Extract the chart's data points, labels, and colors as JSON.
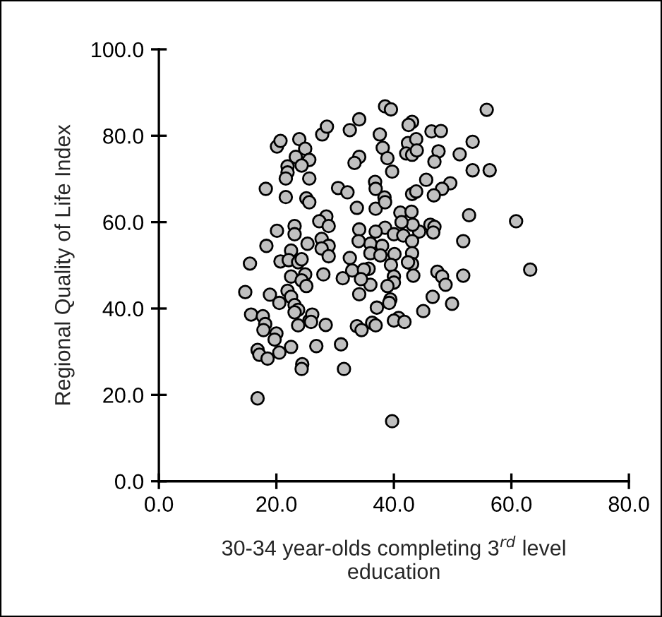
{
  "chart_data": {
    "type": "scatter",
    "xlabel": "30-34 year-olds completing 3$^{rd}$ level\neducation",
    "ylabel": "Regional Quality of Life Index",
    "xlim": [
      0,
      80
    ],
    "ylim": [
      0,
      100
    ],
    "xticks": [
      {
        "value": 0,
        "label": "0.0"
      },
      {
        "value": 20,
        "label": "20.0"
      },
      {
        "value": 40,
        "label": "40.0"
      },
      {
        "value": 60,
        "label": "60.0"
      },
      {
        "value": 80,
        "label": "80.0"
      }
    ],
    "yticks": [
      {
        "value": 0,
        "label": "0.0"
      },
      {
        "value": 20,
        "label": "20.0"
      },
      {
        "value": 40,
        "label": "40.0"
      },
      {
        "value": 60,
        "label": "60.0"
      },
      {
        "value": 80,
        "label": "80.0"
      },
      {
        "value": 100,
        "label": "100.0"
      }
    ],
    "grid": false,
    "legend": false,
    "marker": "circle",
    "series": [
      {
        "color": "#c0c0c0",
        "x": [
          20.1,
          20.7,
          23.9,
          24.9,
          23.3,
          25.6,
          21.9,
          24.3,
          21.9,
          21.6,
          25.6,
          18.2,
          21.6,
          25.1,
          25.6,
          27.8,
          28.6,
          32.5,
          34.1,
          30.5,
          32.1,
          34.1,
          33.3,
          33.7,
          38.5,
          39.5,
          55.8,
          43.1,
          42.5,
          46.4,
          48.0,
          37.6,
          42.4,
          43.8,
          38.1,
          42.1,
          43.1,
          43.9,
          47.6,
          46.9,
          53.4,
          51.2,
          38.9,
          39.7,
          53.4,
          56.3,
          45.5,
          49.6,
          48.2,
          46.8,
          43.1,
          43.8,
          36.8,
          36.9,
          38.4,
          36.9,
          38.5,
          41.1,
          43.0,
          52.8,
          60.8,
          46.2,
          46.9,
          46.7,
          44.3,
          43.2,
          41.3,
          38.5,
          36.9,
          40.0,
          41.6,
          43.1,
          51.8,
          36.0,
          38.0,
          36.0,
          37.7,
          40.1,
          43.1,
          43.1,
          42.4,
          39.5,
          35.7,
          47.4,
          48.2,
          48.8,
          51.8,
          63.2,
          43.3,
          40.0,
          40.0,
          38.9,
          36.0,
          46.6,
          49.9,
          39.4,
          39.2,
          37.1,
          45.0,
          40.8,
          40.0,
          41.8,
          36.3,
          36.9,
          39.7,
          23.1,
          28.5,
          27.3,
          28.9,
          20.1,
          23.1,
          34.1,
          34.0,
          27.7,
          25.3,
          28.9,
          18.3,
          15.5,
          20.7,
          22.5,
          22.1,
          23.7,
          24.3,
          27.7,
          28.9,
          32.5,
          32.9,
          34.9,
          31.3,
          34.4,
          28.0,
          24.9,
          22.5,
          24.3,
          25.1,
          14.7,
          18.9,
          21.9,
          22.5,
          20.5,
          23.1,
          23.7,
          23.1,
          34.1,
          15.7,
          17.7,
          18.1,
          17.8,
          20.0,
          19.7,
          22.5,
          25.6,
          26.1,
          23.7,
          25.9,
          28.4,
          33.7,
          34.5,
          16.8,
          17.1,
          18.5,
          20.5,
          26.8,
          31.0,
          24.4,
          24.3,
          31.5,
          16.8
        ],
        "values": [
          77.5,
          78.8,
          79.2,
          77.0,
          75.1,
          74.4,
          72.9,
          73.1,
          71.5,
          70.1,
          70.1,
          67.7,
          65.8,
          65.5,
          64.6,
          80.3,
          82.1,
          81.3,
          83.8,
          67.9,
          66.9,
          75.1,
          73.7,
          63.3,
          86.8,
          86.1,
          86.0,
          83.2,
          82.5,
          81.0,
          81.1,
          80.3,
          78.3,
          79.2,
          77.2,
          75.9,
          75.6,
          76.6,
          76.4,
          74.0,
          78.6,
          75.7,
          74.8,
          71.7,
          72.0,
          72.0,
          69.8,
          69.0,
          67.7,
          66.2,
          66.5,
          67.1,
          69.3,
          67.7,
          65.7,
          63.1,
          64.6,
          62.2,
          62.4,
          61.6,
          60.2,
          59.4,
          58.9,
          57.6,
          57.8,
          59.4,
          60.0,
          58.7,
          57.8,
          57.2,
          56.9,
          55.6,
          55.6,
          55.0,
          54.5,
          52.8,
          52.3,
          52.6,
          52.8,
          50.3,
          50.7,
          50.1,
          49.2,
          48.5,
          47.4,
          45.5,
          47.6,
          49.0,
          47.6,
          47.4,
          46.0,
          45.2,
          45.5,
          42.7,
          41.1,
          42.1,
          41.3,
          40.2,
          39.4,
          37.8,
          37.2,
          36.9,
          36.7,
          36.1,
          13.9,
          59.1,
          61.3,
          60.2,
          59.1,
          58.0,
          57.2,
          58.3,
          55.6,
          56.1,
          55.0,
          54.5,
          54.5,
          50.4,
          50.9,
          53.4,
          51.2,
          50.7,
          51.4,
          53.9,
          52.1,
          51.7,
          48.8,
          49.0,
          47.0,
          46.8,
          47.9,
          47.9,
          47.4,
          46.5,
          45.2,
          43.8,
          43.2,
          44.1,
          42.7,
          41.3,
          40.8,
          39.7,
          39.1,
          43.3,
          38.6,
          38.2,
          36.4,
          35.0,
          34.2,
          32.8,
          31.1,
          37.2,
          38.6,
          36.1,
          36.9,
          36.2,
          35.9,
          35.0,
          30.4,
          29.3,
          28.4,
          29.8,
          31.3,
          31.7,
          27.1,
          26.0,
          26.0,
          19.2
        ]
      }
    ]
  }
}
